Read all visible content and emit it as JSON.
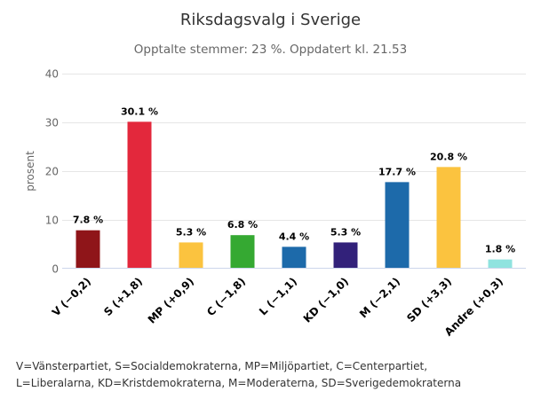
{
  "chart_data": {
    "type": "bar",
    "title": "Riksdagsvalg i Sverige",
    "subtitle": "Opptalte stemmer: 23 %. Oppdatert kl. 21.53",
    "ylabel": "prosent",
    "xlabel": "",
    "ylim": [
      0,
      40
    ],
    "yticks": [
      0,
      10,
      20,
      30,
      40
    ],
    "grid": true,
    "legend": "none",
    "categories": [
      "V (−0,2)",
      "S (+1,8)",
      "MP (+0,9)",
      "C (−1,8)",
      "L (−1,1)",
      "KD (−1,0)",
      "M (−2,1)",
      "SD (+3,3)",
      "Andre (+0,3)"
    ],
    "values": [
      7.8,
      30.1,
      5.3,
      6.8,
      4.4,
      5.3,
      17.7,
      20.8,
      1.8
    ],
    "data_labels": [
      "7.8 %",
      "30.1 %",
      "5.3 %",
      "6.8 %",
      "4.4 %",
      "5.3 %",
      "17.7 %",
      "20.8 %",
      "1.8 %"
    ],
    "colors": [
      "#8f1519",
      "#e3283c",
      "#fbc33f",
      "#35a932",
      "#1d6aaa",
      "#32217a",
      "#1d6aaa",
      "#fbc33f",
      "#8fe3df"
    ]
  },
  "footnote": {
    "line1": "V=Vänsterpartiet, S=Socialdemokraterna, MP=Miljöpartiet, C=Centerpartiet,",
    "line2": "L=Liberalarna, KD=Kristdemokraterna, M=Moderaterna, SD=Sverigedemokraterna"
  }
}
